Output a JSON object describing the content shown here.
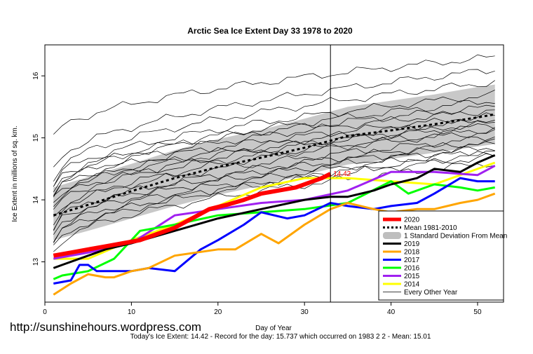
{
  "chart_data": {
    "type": "line",
    "title": "Arctic Sea Ice Extent Day 33 1978 to 2020",
    "xlabel": "Day of Year",
    "ylabel": "Ice Extent in millions of sq. km.",
    "xlim": [
      0,
      53
    ],
    "ylim": [
      12.35,
      16.5
    ],
    "xticks": [
      "0",
      "10",
      "20",
      "30",
      "40",
      "50"
    ],
    "yticks": [
      "13",
      "14",
      "15",
      "16"
    ],
    "current_day": 33,
    "current_label": "14.42",
    "legend_position": "bottom-right",
    "legend": [
      {
        "label": "2020",
        "color": "#ff0000",
        "style": "thick"
      },
      {
        "label": "Mean 1981-2010",
        "color": "#000000",
        "style": "dotted"
      },
      {
        "label": "1 Standard Deviation From Mean",
        "color": "#bebebe",
        "style": "band"
      },
      {
        "label": "2019",
        "color": "#000000",
        "style": "line"
      },
      {
        "label": "2018",
        "color": "#ffa500",
        "style": "line"
      },
      {
        "label": "2017",
        "color": "#0000ff",
        "style": "line"
      },
      {
        "label": "2016",
        "color": "#00ff00",
        "style": "line"
      },
      {
        "label": "2015",
        "color": "#a020f0",
        "style": "line"
      },
      {
        "label": "2014",
        "color": "#ffff00",
        "style": "line"
      },
      {
        "label": "Every Other Year",
        "color": "#000000",
        "style": "thin"
      }
    ],
    "mean": {
      "x": [
        1,
        5,
        10,
        15,
        20,
        25,
        30,
        35,
        40,
        45,
        50,
        52
      ],
      "y": [
        13.75,
        13.92,
        14.14,
        14.35,
        14.53,
        14.68,
        14.84,
        15.03,
        15.12,
        15.22,
        15.33,
        15.38
      ]
    },
    "std_band": {
      "x": [
        1,
        5,
        10,
        15,
        20,
        25,
        30,
        35,
        40,
        45,
        50,
        52
      ],
      "upper": [
        14.2,
        14.37,
        14.58,
        14.8,
        14.98,
        15.13,
        15.31,
        15.5,
        15.6,
        15.7,
        15.82,
        15.86
      ],
      "lower": [
        13.35,
        13.5,
        13.7,
        13.9,
        14.08,
        14.23,
        14.4,
        14.57,
        14.66,
        14.76,
        14.86,
        14.9
      ]
    },
    "series": [
      {
        "name": "2014",
        "color": "#ffff00",
        "x": [
          1,
          5,
          10,
          15,
          20,
          25,
          30,
          35,
          40,
          45,
          50,
          52
        ],
        "y": [
          13.05,
          13.05,
          13.35,
          13.6,
          13.9,
          14.2,
          14.35,
          14.35,
          14.3,
          14.25,
          14.5,
          14.6
        ]
      },
      {
        "name": "2015",
        "color": "#a020f0",
        "x": [
          1,
          5,
          10,
          15,
          20,
          25,
          30,
          35,
          40,
          45,
          50,
          52
        ],
        "y": [
          13.05,
          13.15,
          13.3,
          13.75,
          13.85,
          13.95,
          14.0,
          14.15,
          14.45,
          14.45,
          14.4,
          14.55
        ]
      },
      {
        "name": "2016",
        "color": "#00ff00",
        "x": [
          1,
          2,
          5,
          8,
          10,
          11,
          15,
          20,
          25,
          30,
          35,
          40,
          42,
          45,
          48,
          50,
          52
        ],
        "y": [
          12.72,
          12.78,
          12.85,
          13.05,
          13.35,
          13.5,
          13.6,
          13.75,
          13.8,
          13.85,
          13.95,
          14.3,
          14.1,
          14.25,
          14.2,
          14.15,
          14.2
        ]
      },
      {
        "name": "2017",
        "color": "#0000ff",
        "x": [
          1,
          3,
          4,
          5,
          6,
          8,
          10,
          12,
          15,
          18,
          20,
          23,
          25,
          28,
          30,
          33,
          35,
          38,
          40,
          43,
          45,
          48,
          50,
          52
        ],
        "y": [
          12.65,
          12.7,
          12.95,
          12.95,
          12.85,
          12.85,
          12.85,
          12.9,
          12.85,
          13.2,
          13.35,
          13.6,
          13.8,
          13.7,
          13.75,
          13.95,
          13.9,
          13.85,
          13.9,
          13.95,
          14.1,
          14.35,
          14.3,
          14.3
        ]
      },
      {
        "name": "2018",
        "color": "#ffa500",
        "x": [
          1,
          3,
          5,
          7,
          8,
          10,
          12,
          15,
          20,
          22,
          25,
          27,
          30,
          33,
          35,
          38,
          40,
          43,
          45,
          48,
          50,
          52
        ],
        "y": [
          12.47,
          12.65,
          12.8,
          12.75,
          12.75,
          12.85,
          12.9,
          13.1,
          13.2,
          13.2,
          13.45,
          13.3,
          13.6,
          13.85,
          13.95,
          13.85,
          13.8,
          13.85,
          13.85,
          13.95,
          14.0,
          14.1
        ]
      },
      {
        "name": "2019",
        "color": "#000000",
        "x": [
          1,
          2,
          5,
          7,
          10,
          15,
          20,
          25,
          30,
          33,
          35,
          38,
          40,
          43,
          45,
          48,
          50,
          52
        ],
        "y": [
          12.9,
          12.95,
          13.1,
          13.2,
          13.3,
          13.5,
          13.7,
          13.85,
          14.0,
          14.05,
          14.05,
          14.15,
          14.25,
          14.35,
          14.5,
          14.45,
          14.6,
          14.72
        ]
      },
      {
        "name": "2020",
        "color": "#ff0000",
        "x": [
          1,
          3,
          5,
          7,
          9,
          11,
          13,
          15,
          17,
          19,
          21,
          23,
          25,
          27,
          29,
          31,
          32,
          33
        ],
        "y": [
          13.1,
          13.15,
          13.2,
          13.25,
          13.3,
          13.35,
          13.45,
          13.55,
          13.7,
          13.85,
          13.92,
          14.0,
          14.1,
          14.15,
          14.2,
          14.3,
          14.35,
          14.42
        ]
      }
    ],
    "other_years": [
      {
        "y1": 15.0,
        "y52": 16.3
      },
      {
        "y1": 14.5,
        "y52": 16.1
      },
      {
        "y1": 14.35,
        "y52": 15.9
      },
      {
        "y1": 14.25,
        "y52": 15.7
      },
      {
        "y1": 14.2,
        "y52": 15.5
      },
      {
        "y1": 14.15,
        "y52": 15.6
      },
      {
        "y1": 14.1,
        "y52": 15.45
      },
      {
        "y1": 14.05,
        "y52": 15.35
      },
      {
        "y1": 14.0,
        "y52": 15.2
      },
      {
        "y1": 13.95,
        "y52": 15.3
      },
      {
        "y1": 13.9,
        "y52": 15.1
      },
      {
        "y1": 13.8,
        "y52": 15.25
      },
      {
        "y1": 13.7,
        "y52": 15.0
      },
      {
        "y1": 13.65,
        "y52": 15.15
      },
      {
        "y1": 13.55,
        "y52": 14.95
      },
      {
        "y1": 13.5,
        "y52": 14.9
      },
      {
        "y1": 13.45,
        "y52": 14.85
      },
      {
        "y1": 13.35,
        "y52": 14.8
      },
      {
        "y1": 13.3,
        "y52": 14.7
      },
      {
        "y1": 13.2,
        "y52": 14.75
      },
      {
        "y1": 13.15,
        "y52": 14.6
      }
    ]
  },
  "footer": {
    "url": "http://sunshinehours.wordpress.com",
    "summary": "Today's Ice Extent: 14.42  - Record for the day: 15.737 which occurred on 1983 2 2  - Mean: 15.01"
  }
}
